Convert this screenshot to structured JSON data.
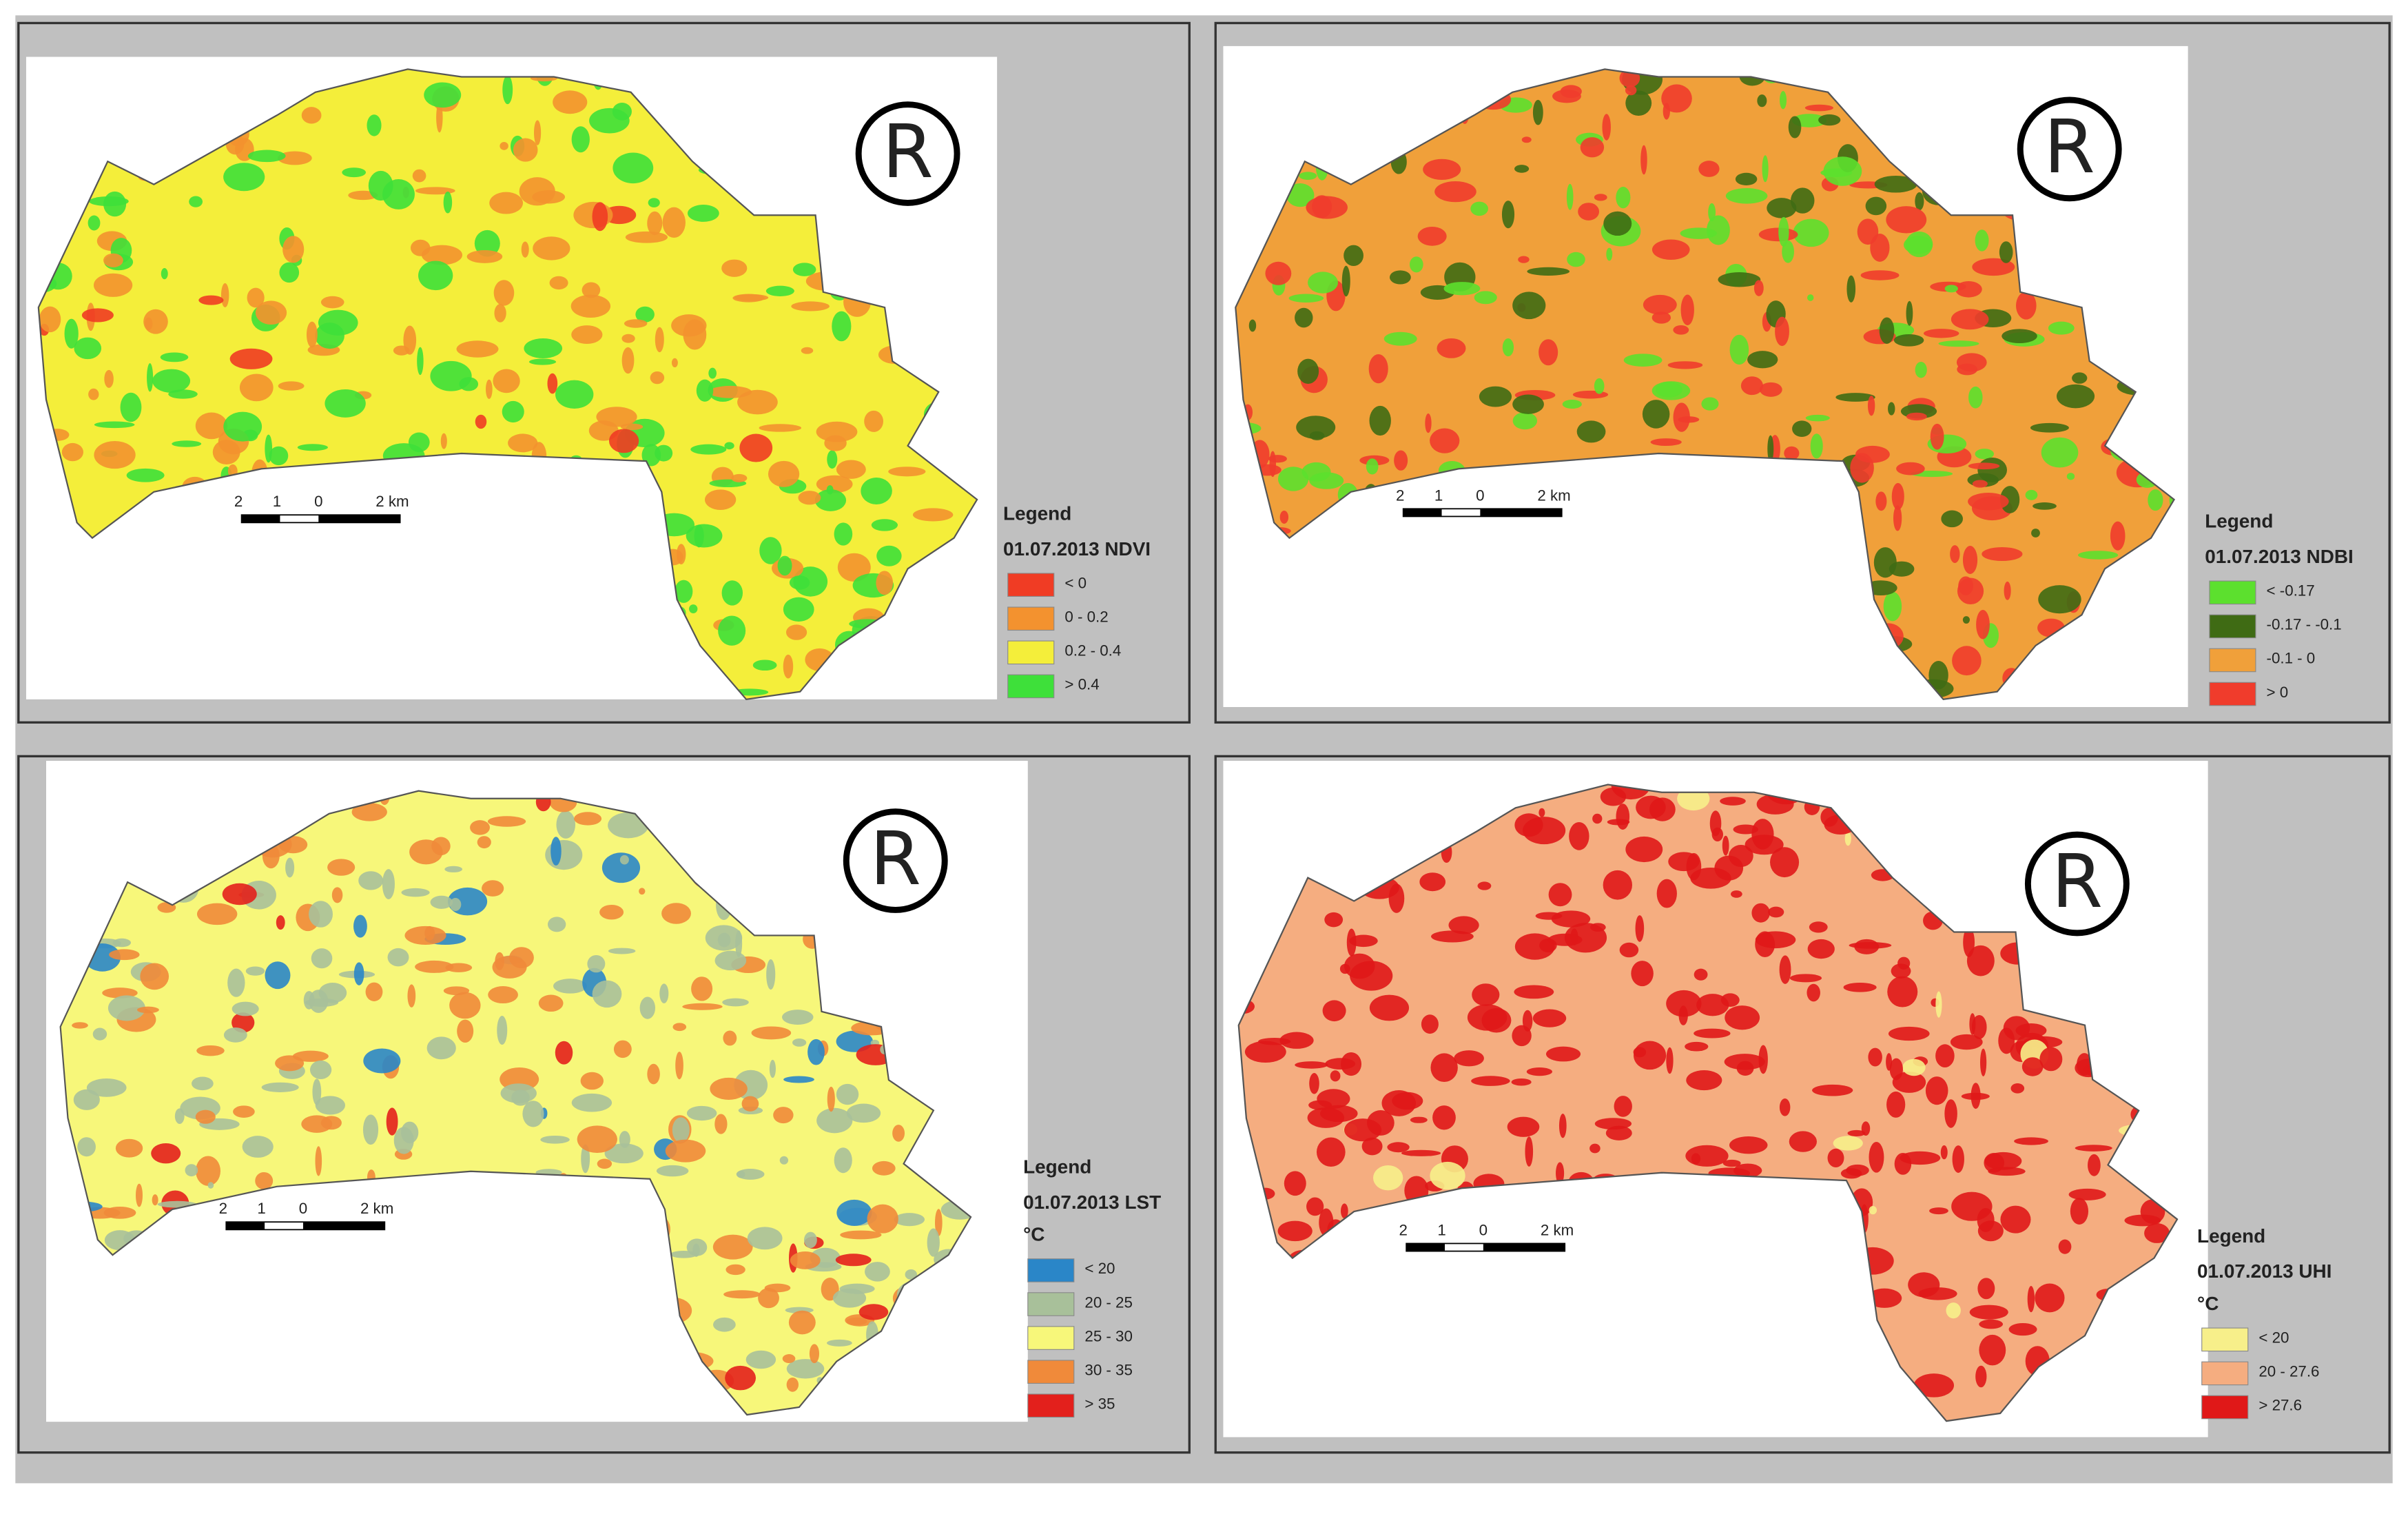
{
  "panels": [
    {
      "symbol": "R",
      "scale_bar": [
        "2",
        "1",
        "0",
        "2 km"
      ],
      "legend": {
        "heading": "Legend",
        "title": "01.07.2013 NDVI",
        "classes": [
          {
            "label": "< 0",
            "color": "#f03c24"
          },
          {
            "label": "0 - 0.2",
            "color": "#f3922f"
          },
          {
            "label": "0.2 - 0.4",
            "color": "#f4ee3a"
          },
          {
            "label": "> 0.4",
            "color": "#3ee03a"
          }
        ]
      }
    },
    {
      "symbol": "R",
      "scale_bar": [
        "2",
        "1",
        "0",
        "2 km"
      ],
      "legend": {
        "heading": "Legend",
        "title": "01.07.2013 NDBI",
        "classes": [
          {
            "label": "< -0.17",
            "color": "#5ce02e"
          },
          {
            "label": "-0.17 - -0.1",
            "color": "#3f6b14"
          },
          {
            "label": "-0.1 - 0",
            "color": "#f0a03a"
          },
          {
            "label": "> 0",
            "color": "#f03c2c"
          }
        ]
      }
    },
    {
      "symbol": "R",
      "scale_bar": [
        "2",
        "1",
        "0",
        "2 km"
      ],
      "legend": {
        "heading": "Legend",
        "title": "01.07.2013 LST",
        "unit": "°C",
        "classes": [
          {
            "label": "< 20",
            "color": "#2a86c8"
          },
          {
            "label": "20 - 25",
            "color": "#a8c09a"
          },
          {
            "label": "25 - 30",
            "color": "#f7f77a"
          },
          {
            "label": "30 - 35",
            "color": "#f08a3a"
          },
          {
            "label": "> 35",
            "color": "#e3201c"
          }
        ]
      }
    },
    {
      "symbol": "R",
      "scale_bar": [
        "2",
        "1",
        "0",
        "2 km"
      ],
      "legend": {
        "heading": "Legend",
        "title": "01.07.2013 UHI",
        "unit": "°C",
        "classes": [
          {
            "label": "< 20",
            "color": "#f7ef8a"
          },
          {
            "label": "20 - 27.6",
            "color": "#f5ad80"
          },
          {
            "label": "> 27.6",
            "color": "#e01818"
          }
        ]
      }
    }
  ]
}
